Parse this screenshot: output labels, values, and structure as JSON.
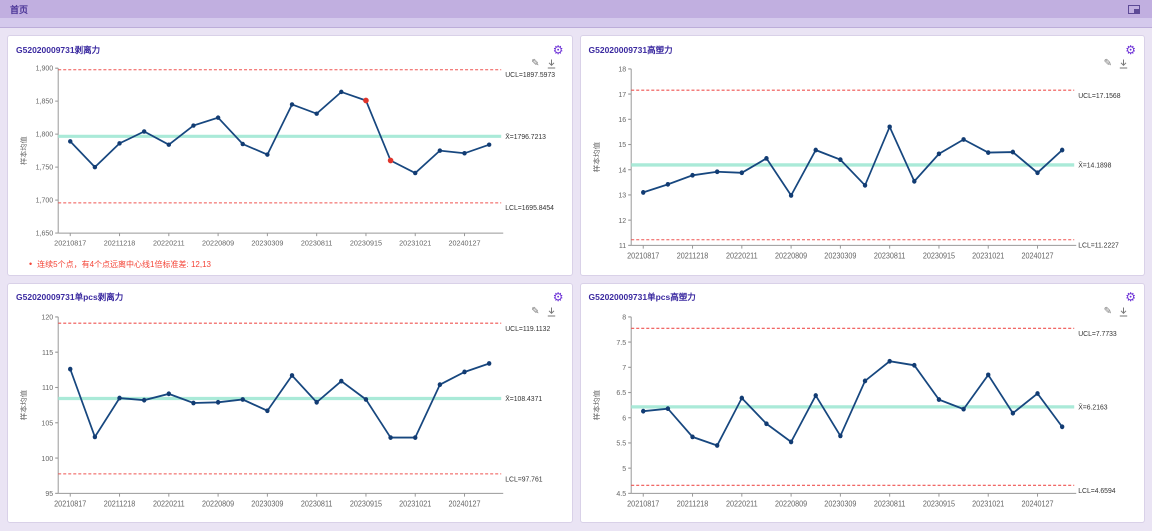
{
  "header": {
    "tab_label": "首页"
  },
  "icons": {
    "gear": "⚙",
    "edit": "✎"
  },
  "colors": {
    "accent": "#6b2fd6",
    "series_line": "#17477f",
    "marker": "#123c73",
    "flag_marker": "#e0342b",
    "limit_line": "#ef5350",
    "center_line": "#aaead8",
    "axis": "#999999",
    "tick_text": "#666666",
    "label_text": "#333333",
    "annotation": "#f44336"
  },
  "chart_data": [
    {
      "type": "line",
      "title": "G52020009731剥离力",
      "ylabel": "样本均值",
      "ucl": 1897.5973,
      "center": 1796.7213,
      "lcl": 1695.8454,
      "ucl_label": "UCL=1897.5973",
      "center_label": "X̄=1796.7213",
      "lcl_label": "LCL=1695.8454",
      "ylim": [
        1650,
        1900
      ],
      "yticks": [
        1650,
        1700,
        1750,
        1800,
        1850,
        1900
      ],
      "ytick_labels": [
        "1,650",
        "1,700",
        "1,750",
        "1,800",
        "1,850",
        "1,900"
      ],
      "x_labels": [
        "20210817",
        "20211218",
        "20220211",
        "20220809",
        "20230309",
        "20230811",
        "20230915",
        "20231021",
        "20240127"
      ],
      "x_label_indices": [
        0,
        2,
        4,
        6,
        8,
        10,
        12,
        14,
        16
      ],
      "values": [
        1789,
        1750,
        1786,
        1804,
        1784,
        1813,
        1825,
        1785,
        1769,
        1845,
        1831,
        1864,
        1851,
        1760,
        1741,
        1775,
        1771,
        1784
      ],
      "flagged_indices": [
        12,
        13
      ],
      "annotation": {
        "bullet": "•",
        "text": "连续5个点，有4个点远离中心线1倍标准差: 12,13"
      }
    },
    {
      "type": "line",
      "title": "G52020009731高塑力",
      "ylabel": "样本均值",
      "ucl": 17.1568,
      "center": 14.1898,
      "lcl": 11.2227,
      "ucl_label": "UCL=17.1568",
      "center_label": "X̄=14.1898",
      "lcl_label": "LCL=11.2227",
      "ylim": [
        11,
        18
      ],
      "yticks": [
        11,
        12,
        13,
        14,
        15,
        16,
        17,
        18
      ],
      "ytick_labels": [
        "11",
        "12",
        "13",
        "14",
        "15",
        "16",
        "17",
        "18"
      ],
      "x_labels": [
        "20210817",
        "20211218",
        "20220211",
        "20220809",
        "20230309",
        "20230811",
        "20230915",
        "20231021",
        "20240127"
      ],
      "x_label_indices": [
        0,
        2,
        4,
        6,
        8,
        10,
        12,
        14,
        16
      ],
      "values": [
        13.1,
        13.42,
        13.78,
        13.92,
        13.88,
        14.45,
        12.98,
        14.78,
        14.4,
        13.38,
        15.7,
        13.54,
        14.63,
        15.2,
        14.68,
        14.7,
        13.88,
        14.78
      ],
      "flagged_indices": []
    },
    {
      "type": "line",
      "title": "G52020009731单pcs剥离力",
      "ylabel": "样本均值",
      "ucl": 119.1132,
      "center": 108.4371,
      "lcl": 97.761,
      "ucl_label": "UCL=119.1132",
      "center_label": "X̄=108.4371",
      "lcl_label": "LCL=97.761",
      "ylim": [
        95,
        120
      ],
      "yticks": [
        95,
        100,
        105,
        110,
        115,
        120
      ],
      "ytick_labels": [
        "95",
        "100",
        "105",
        "110",
        "115",
        "120"
      ],
      "x_labels": [
        "20210817",
        "20211218",
        "20220211",
        "20220809",
        "20230309",
        "20230811",
        "20230915",
        "20231021",
        "20240127"
      ],
      "x_label_indices": [
        0,
        2,
        4,
        6,
        8,
        10,
        12,
        14,
        16
      ],
      "values": [
        112.6,
        103.0,
        108.5,
        108.2,
        109.1,
        107.8,
        107.9,
        108.3,
        106.7,
        111.7,
        107.9,
        110.9,
        108.3,
        102.9,
        102.9,
        110.4,
        112.2,
        113.4
      ],
      "flagged_indices": []
    },
    {
      "type": "line",
      "title": "G52020009731单pcs高塑力",
      "ylabel": "样本均值",
      "ucl": 7.7733,
      "center": 6.2163,
      "lcl": 4.6594,
      "ucl_label": "UCL=7.7733",
      "center_label": "X̄=6.2163",
      "lcl_label": "LCL=4.6594",
      "ylim": [
        4.5,
        8
      ],
      "yticks": [
        4.5,
        5,
        5.5,
        6,
        6.5,
        7,
        7.5,
        8
      ],
      "ytick_labels": [
        "4.5",
        "5",
        "5.5",
        "6",
        "6.5",
        "7",
        "7.5",
        "8"
      ],
      "x_labels": [
        "20210817",
        "20211218",
        "20220211",
        "20220809",
        "20230309",
        "20230811",
        "20230915",
        "20231021",
        "20240127"
      ],
      "x_label_indices": [
        0,
        2,
        4,
        6,
        8,
        10,
        12,
        14,
        16
      ],
      "values": [
        6.13,
        6.18,
        5.62,
        5.45,
        6.39,
        5.88,
        5.52,
        6.44,
        5.64,
        6.73,
        7.12,
        7.04,
        6.36,
        6.17,
        6.85,
        6.09,
        6.48,
        5.82
      ],
      "flagged_indices": []
    }
  ]
}
